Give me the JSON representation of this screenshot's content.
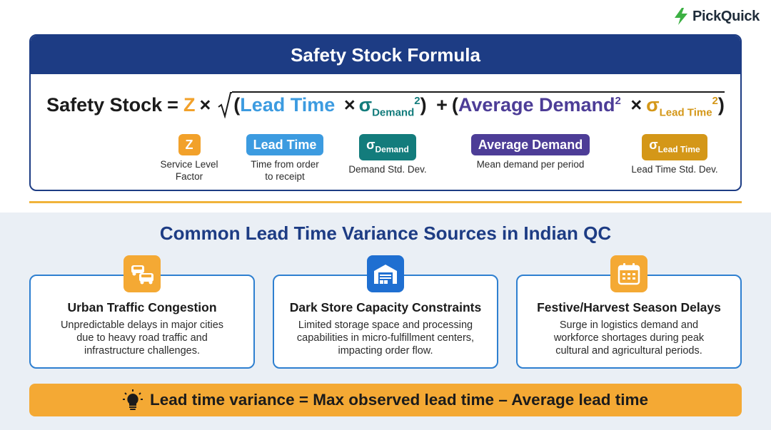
{
  "brand": {
    "name": "PickQuick",
    "logo_icon": "lightning-bolt-icon",
    "logo_color": "#3cb043"
  },
  "formula": {
    "title": "Safety Stock Formula",
    "lhs": "Safety Stock",
    "equals": "=",
    "z": "Z",
    "times": "×",
    "open_paren": "(",
    "close_paren": ")",
    "plus": "+",
    "lead_time": "Lead Time",
    "sigma": "σ",
    "demand_sub": "Demand",
    "squared": "2",
    "average_demand": "Average Demand",
    "lead_time_sub": "Lead Time"
  },
  "legend": [
    {
      "symbol": "Z",
      "desc_line1": "Service Level",
      "desc_line2": "Factor",
      "color": "#f2a12a"
    },
    {
      "symbol": "Lead Time",
      "desc_line1": "Time from order",
      "desc_line2": "to receipt",
      "color": "#3c9be0"
    },
    {
      "symbol": "σ",
      "sub": "Demand",
      "desc_line1": "Demand Std. Dev.",
      "color": "#137c7c"
    },
    {
      "symbol": "Average Demand",
      "desc_line1": "Mean demand per period",
      "color": "#4d3d97"
    },
    {
      "symbol": "σ",
      "sub": "Lead Time",
      "desc_line1": "Lead Time Std. Dev.",
      "color": "#d49718"
    }
  ],
  "section": {
    "title": "Common Lead Time Variance Sources in Indian QC"
  },
  "sources": [
    {
      "icon": "traffic-cars-icon",
      "icon_color": "#f4a934",
      "title": "Urban Traffic Congestion",
      "desc": [
        "Unpredictable delays in major cities",
        "due to heavy road traffic and",
        "infrastructure challenges."
      ]
    },
    {
      "icon": "warehouse-icon",
      "icon_color": "#1f6fd1",
      "title": "Dark Store Capacity Constraints",
      "desc": [
        "Limited storage space and processing",
        "capabilities in micro-fulfillment centers,",
        "impacting order flow."
      ]
    },
    {
      "icon": "calendar-icon",
      "icon_color": "#f4a934",
      "title": "Festive/Harvest Season Delays",
      "desc": [
        "Surge in logistics demand and",
        "workforce shortages during peak",
        "cultural and agricultural periods."
      ]
    }
  ],
  "banner": {
    "icon": "lightbulb-icon",
    "text": "Lead time variance = Max observed lead time – Average lead time"
  }
}
